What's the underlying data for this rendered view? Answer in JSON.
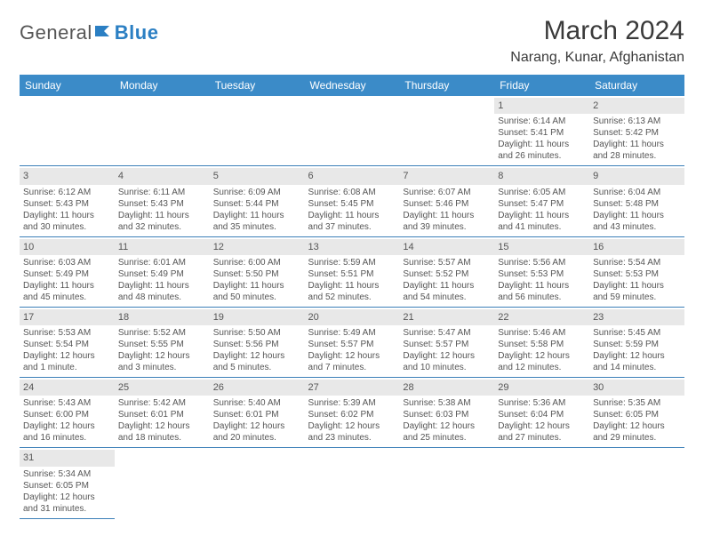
{
  "logo": {
    "part1": "General",
    "part2": "Blue"
  },
  "title": "March 2024",
  "location": "Narang, Kunar, Afghanistan",
  "colors": {
    "header_bg": "#3b8bc8",
    "header_text": "#ffffff",
    "daynum_bg": "#e8e8e8",
    "border": "#3b7fb8",
    "logo_gray": "#555555",
    "logo_blue": "#2b7fc3"
  },
  "weekdays": [
    "Sunday",
    "Monday",
    "Tuesday",
    "Wednesday",
    "Thursday",
    "Friday",
    "Saturday"
  ],
  "weeks": [
    [
      null,
      null,
      null,
      null,
      null,
      {
        "d": "1",
        "sr": "Sunrise: 6:14 AM",
        "ss": "Sunset: 5:41 PM",
        "dl1": "Daylight: 11 hours",
        "dl2": "and 26 minutes."
      },
      {
        "d": "2",
        "sr": "Sunrise: 6:13 AM",
        "ss": "Sunset: 5:42 PM",
        "dl1": "Daylight: 11 hours",
        "dl2": "and 28 minutes."
      }
    ],
    [
      {
        "d": "3",
        "sr": "Sunrise: 6:12 AM",
        "ss": "Sunset: 5:43 PM",
        "dl1": "Daylight: 11 hours",
        "dl2": "and 30 minutes."
      },
      {
        "d": "4",
        "sr": "Sunrise: 6:11 AM",
        "ss": "Sunset: 5:43 PM",
        "dl1": "Daylight: 11 hours",
        "dl2": "and 32 minutes."
      },
      {
        "d": "5",
        "sr": "Sunrise: 6:09 AM",
        "ss": "Sunset: 5:44 PM",
        "dl1": "Daylight: 11 hours",
        "dl2": "and 35 minutes."
      },
      {
        "d": "6",
        "sr": "Sunrise: 6:08 AM",
        "ss": "Sunset: 5:45 PM",
        "dl1": "Daylight: 11 hours",
        "dl2": "and 37 minutes."
      },
      {
        "d": "7",
        "sr": "Sunrise: 6:07 AM",
        "ss": "Sunset: 5:46 PM",
        "dl1": "Daylight: 11 hours",
        "dl2": "and 39 minutes."
      },
      {
        "d": "8",
        "sr": "Sunrise: 6:05 AM",
        "ss": "Sunset: 5:47 PM",
        "dl1": "Daylight: 11 hours",
        "dl2": "and 41 minutes."
      },
      {
        "d": "9",
        "sr": "Sunrise: 6:04 AM",
        "ss": "Sunset: 5:48 PM",
        "dl1": "Daylight: 11 hours",
        "dl2": "and 43 minutes."
      }
    ],
    [
      {
        "d": "10",
        "sr": "Sunrise: 6:03 AM",
        "ss": "Sunset: 5:49 PM",
        "dl1": "Daylight: 11 hours",
        "dl2": "and 45 minutes."
      },
      {
        "d": "11",
        "sr": "Sunrise: 6:01 AM",
        "ss": "Sunset: 5:49 PM",
        "dl1": "Daylight: 11 hours",
        "dl2": "and 48 minutes."
      },
      {
        "d": "12",
        "sr": "Sunrise: 6:00 AM",
        "ss": "Sunset: 5:50 PM",
        "dl1": "Daylight: 11 hours",
        "dl2": "and 50 minutes."
      },
      {
        "d": "13",
        "sr": "Sunrise: 5:59 AM",
        "ss": "Sunset: 5:51 PM",
        "dl1": "Daylight: 11 hours",
        "dl2": "and 52 minutes."
      },
      {
        "d": "14",
        "sr": "Sunrise: 5:57 AM",
        "ss": "Sunset: 5:52 PM",
        "dl1": "Daylight: 11 hours",
        "dl2": "and 54 minutes."
      },
      {
        "d": "15",
        "sr": "Sunrise: 5:56 AM",
        "ss": "Sunset: 5:53 PM",
        "dl1": "Daylight: 11 hours",
        "dl2": "and 56 minutes."
      },
      {
        "d": "16",
        "sr": "Sunrise: 5:54 AM",
        "ss": "Sunset: 5:53 PM",
        "dl1": "Daylight: 11 hours",
        "dl2": "and 59 minutes."
      }
    ],
    [
      {
        "d": "17",
        "sr": "Sunrise: 5:53 AM",
        "ss": "Sunset: 5:54 PM",
        "dl1": "Daylight: 12 hours",
        "dl2": "and 1 minute."
      },
      {
        "d": "18",
        "sr": "Sunrise: 5:52 AM",
        "ss": "Sunset: 5:55 PM",
        "dl1": "Daylight: 12 hours",
        "dl2": "and 3 minutes."
      },
      {
        "d": "19",
        "sr": "Sunrise: 5:50 AM",
        "ss": "Sunset: 5:56 PM",
        "dl1": "Daylight: 12 hours",
        "dl2": "and 5 minutes."
      },
      {
        "d": "20",
        "sr": "Sunrise: 5:49 AM",
        "ss": "Sunset: 5:57 PM",
        "dl1": "Daylight: 12 hours",
        "dl2": "and 7 minutes."
      },
      {
        "d": "21",
        "sr": "Sunrise: 5:47 AM",
        "ss": "Sunset: 5:57 PM",
        "dl1": "Daylight: 12 hours",
        "dl2": "and 10 minutes."
      },
      {
        "d": "22",
        "sr": "Sunrise: 5:46 AM",
        "ss": "Sunset: 5:58 PM",
        "dl1": "Daylight: 12 hours",
        "dl2": "and 12 minutes."
      },
      {
        "d": "23",
        "sr": "Sunrise: 5:45 AM",
        "ss": "Sunset: 5:59 PM",
        "dl1": "Daylight: 12 hours",
        "dl2": "and 14 minutes."
      }
    ],
    [
      {
        "d": "24",
        "sr": "Sunrise: 5:43 AM",
        "ss": "Sunset: 6:00 PM",
        "dl1": "Daylight: 12 hours",
        "dl2": "and 16 minutes."
      },
      {
        "d": "25",
        "sr": "Sunrise: 5:42 AM",
        "ss": "Sunset: 6:01 PM",
        "dl1": "Daylight: 12 hours",
        "dl2": "and 18 minutes."
      },
      {
        "d": "26",
        "sr": "Sunrise: 5:40 AM",
        "ss": "Sunset: 6:01 PM",
        "dl1": "Daylight: 12 hours",
        "dl2": "and 20 minutes."
      },
      {
        "d": "27",
        "sr": "Sunrise: 5:39 AM",
        "ss": "Sunset: 6:02 PM",
        "dl1": "Daylight: 12 hours",
        "dl2": "and 23 minutes."
      },
      {
        "d": "28",
        "sr": "Sunrise: 5:38 AM",
        "ss": "Sunset: 6:03 PM",
        "dl1": "Daylight: 12 hours",
        "dl2": "and 25 minutes."
      },
      {
        "d": "29",
        "sr": "Sunrise: 5:36 AM",
        "ss": "Sunset: 6:04 PM",
        "dl1": "Daylight: 12 hours",
        "dl2": "and 27 minutes."
      },
      {
        "d": "30",
        "sr": "Sunrise: 5:35 AM",
        "ss": "Sunset: 6:05 PM",
        "dl1": "Daylight: 12 hours",
        "dl2": "and 29 minutes."
      }
    ],
    [
      {
        "d": "31",
        "sr": "Sunrise: 5:34 AM",
        "ss": "Sunset: 6:05 PM",
        "dl1": "Daylight: 12 hours",
        "dl2": "and 31 minutes."
      },
      null,
      null,
      null,
      null,
      null,
      null
    ]
  ]
}
